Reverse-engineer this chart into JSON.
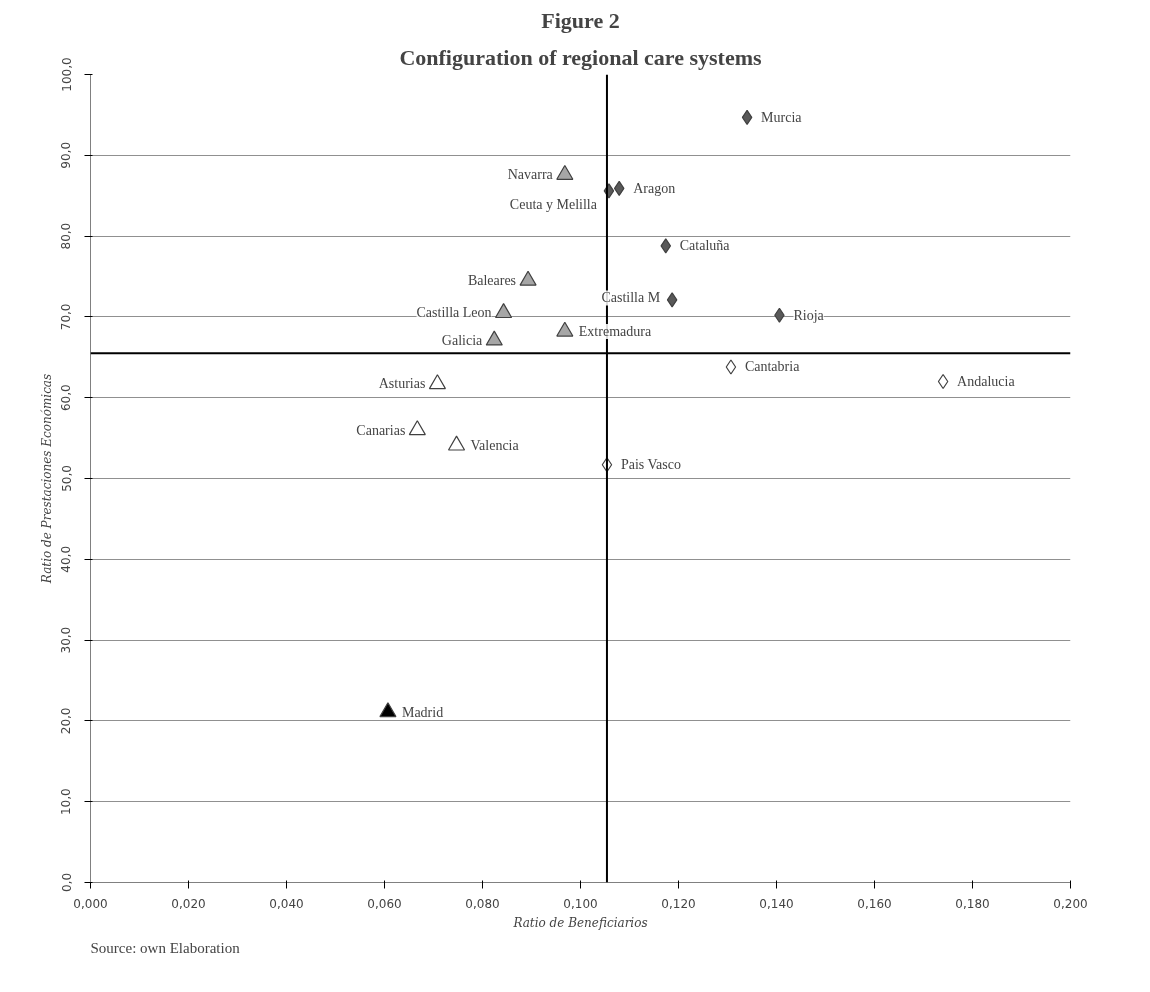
{
  "chart_data": {
    "type": "scatter",
    "title": "Figure 2",
    "subtitle": "Configuration of regional care systems",
    "xlabel": "Ratio de Beneficiarios",
    "ylabel": "Ratio de Prestaciones Económicas",
    "xlim": [
      0,
      0.2
    ],
    "ylim": [
      0,
      100
    ],
    "xticks": [
      {
        "value": 0,
        "label": "0,000"
      },
      {
        "value": 0.02,
        "label": "0,020"
      },
      {
        "value": 0.04,
        "label": "0,040"
      },
      {
        "value": 0.06,
        "label": "0,060"
      },
      {
        "value": 0.08,
        "label": "0,080"
      },
      {
        "value": 0.1,
        "label": "0,100"
      },
      {
        "value": 0.12,
        "label": "0,120"
      },
      {
        "value": 0.14,
        "label": "0,140"
      },
      {
        "value": 0.16,
        "label": "0,160"
      },
      {
        "value": 0.18,
        "label": "0,180"
      },
      {
        "value": 0.2,
        "label": "0,200"
      }
    ],
    "yticks": [
      {
        "value": 0,
        "label": "0,0"
      },
      {
        "value": 10,
        "label": "10,0"
      },
      {
        "value": 20,
        "label": "20,0"
      },
      {
        "value": 30,
        "label": "30,0"
      },
      {
        "value": 40,
        "label": "40,0"
      },
      {
        "value": 50,
        "label": "50,0"
      },
      {
        "value": 60,
        "label": "60,0"
      },
      {
        "value": 70,
        "label": "70,0"
      },
      {
        "value": 80,
        "label": "80,0"
      },
      {
        "value": 90,
        "label": "90,0"
      },
      {
        "value": 100,
        "label": "100,0"
      }
    ],
    "grid": "y",
    "series": [
      {
        "color": "#595959",
        "marker": "diamond",
        "x": [
          0.134,
          0.1058,
          0.1079,
          0.1174,
          0.1187,
          0.1406
        ],
        "values": [
          94.7,
          85.6,
          85.9,
          78.8,
          72.1,
          70.2
        ]
      },
      {
        "color": "#ffffff",
        "marker": "diamond",
        "x": [
          0.1307,
          0.174,
          0.1054
        ],
        "values": [
          63.8,
          62.0,
          51.7
        ]
      },
      {
        "color": "#a6a6a6",
        "marker": "triangle",
        "x": [
          0.0968,
          0.0893,
          0.0843,
          0.0968,
          0.0824
        ],
        "values": [
          87.6,
          74.5,
          70.5,
          68.2,
          67.1
        ]
      },
      {
        "color": "#ffffff",
        "marker": "triangle",
        "x": [
          0.0708,
          0.0667,
          0.0747
        ],
        "values": [
          61.7,
          56.0,
          54.1
        ]
      },
      {
        "color": "#000000",
        "marker": "triangle",
        "x": [
          0.0607
        ],
        "values": [
          21.1
        ]
      }
    ],
    "ref_lines": [
      {
        "axis": "x",
        "value": 0.1054,
        "color": "#000000"
      },
      {
        "axis": "y",
        "value": 65.5,
        "color": "#000000"
      }
    ],
    "annotations": [
      {
        "text": "Murcia",
        "x": 0.134,
        "y": 94.7
      },
      {
        "text": "Ceuta y Melilla",
        "x": 0.1058,
        "y": 85.6
      },
      {
        "text": "Aragon",
        "x": 0.1079,
        "y": 85.9
      },
      {
        "text": "Cataluña",
        "x": 0.1174,
        "y": 78.8
      },
      {
        "text": "Castilla M",
        "x": 0.1187,
        "y": 72.1
      },
      {
        "text": "Rioja",
        "x": 0.1406,
        "y": 70.2
      },
      {
        "text": "Cantabria",
        "x": 0.1307,
        "y": 63.8
      },
      {
        "text": "Andalucia",
        "x": 0.174,
        "y": 62.0
      },
      {
        "text": "Pais Vasco",
        "x": 0.1054,
        "y": 51.7
      },
      {
        "text": "Navarra",
        "x": 0.0968,
        "y": 87.6
      },
      {
        "text": "Baleares",
        "x": 0.0893,
        "y": 74.5
      },
      {
        "text": "Castilla Leon",
        "x": 0.0843,
        "y": 70.5
      },
      {
        "text": "Extremadura",
        "x": 0.0968,
        "y": 68.2
      },
      {
        "text": "Galicia",
        "x": 0.0824,
        "y": 67.1
      },
      {
        "text": "Asturias",
        "x": 0.0708,
        "y": 61.7
      },
      {
        "text": "Canarias",
        "x": 0.0667,
        "y": 56.0
      },
      {
        "text": "Valencia",
        "x": 0.0747,
        "y": 54.1
      },
      {
        "text": "Madrid",
        "x": 0.0607,
        "y": 21.1
      },
      "Source: own Elaboration"
    ]
  }
}
